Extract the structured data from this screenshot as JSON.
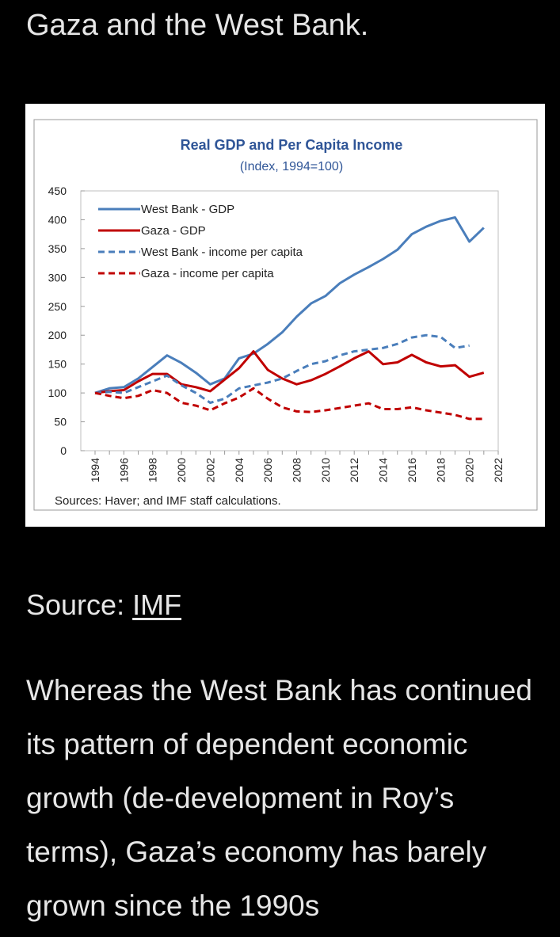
{
  "article": {
    "heading_fragment": "Gaza and the West Bank.",
    "source_label": "Source: ",
    "source_link": "IMF",
    "paragraph": "Whereas the West Bank has continued its pattern of dependent economic growth (de-development in Roy’s terms), Gaza’s economy has barely grown since the 1990s"
  },
  "chart_data": {
    "type": "line",
    "title": "Real GDP and Per Capita Income",
    "subtitle": "(Index, 1994=100)",
    "source_note": "Sources: Haver; and IMF staff calculations.",
    "ylim": [
      0,
      450
    ],
    "yticks": [
      0,
      50,
      100,
      150,
      200,
      250,
      300,
      350,
      400,
      450
    ],
    "xlim": [
      1994,
      2022
    ],
    "xticks": [
      1994,
      1996,
      1998,
      2000,
      2002,
      2004,
      2006,
      2008,
      2010,
      2012,
      2014,
      2016,
      2018,
      2020,
      2022
    ],
    "legend_position": "top-left",
    "grid": false,
    "x": [
      1994,
      1995,
      1996,
      1997,
      1998,
      1999,
      2000,
      2001,
      2002,
      2003,
      2004,
      2005,
      2006,
      2007,
      2008,
      2009,
      2010,
      2011,
      2012,
      2013,
      2014,
      2015,
      2016,
      2017,
      2018,
      2019,
      2020,
      2021,
      2022
    ],
    "series": [
      {
        "name": "West Bank - GDP",
        "color": "#4a7ebb",
        "dash": false,
        "values": [
          100,
          108,
          110,
          125,
          145,
          165,
          152,
          135,
          115,
          125,
          160,
          168,
          185,
          205,
          232,
          255,
          268,
          290,
          305,
          318,
          332,
          348,
          375,
          388,
          398,
          404,
          362,
          386,
          null
        ]
      },
      {
        "name": "Gaza - GDP",
        "color": "#c00000",
        "dash": false,
        "values": [
          100,
          103,
          105,
          120,
          133,
          133,
          115,
          110,
          103,
          123,
          143,
          172,
          140,
          125,
          115,
          122,
          133,
          146,
          160,
          172,
          150,
          153,
          166,
          153,
          146,
          148,
          128,
          135,
          null
        ]
      },
      {
        "name": "West Bank - income per capita",
        "color": "#4a7ebb",
        "dash": true,
        "values": [
          100,
          102,
          100,
          110,
          120,
          130,
          113,
          100,
          83,
          90,
          108,
          113,
          118,
          125,
          138,
          150,
          155,
          165,
          172,
          175,
          178,
          185,
          196,
          200,
          197,
          178,
          182,
          null,
          null
        ]
      },
      {
        "name": "Gaza - income per capita",
        "color": "#c00000",
        "dash": true,
        "values": [
          100,
          95,
          91,
          95,
          105,
          100,
          83,
          78,
          70,
          82,
          92,
          108,
          90,
          75,
          68,
          67,
          70,
          74,
          78,
          82,
          72,
          72,
          75,
          70,
          66,
          62,
          55,
          55,
          null
        ]
      }
    ]
  }
}
